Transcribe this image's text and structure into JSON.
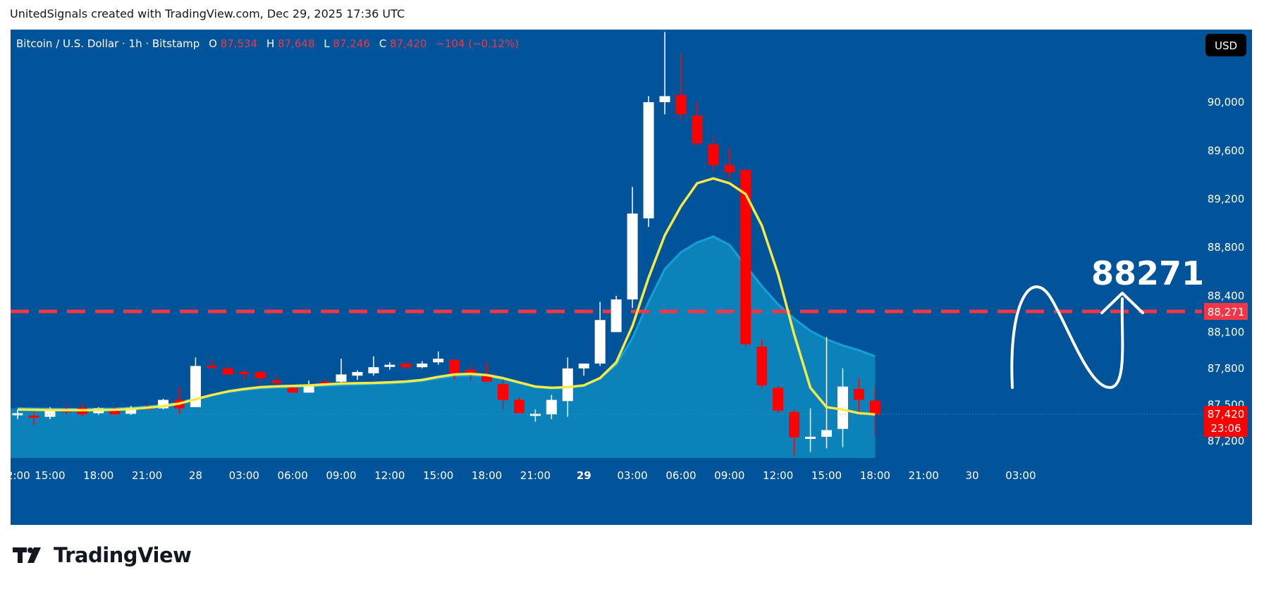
{
  "attribution": "UnitedSignals created with TradingView.com, Dec 29, 2025 17:36 UTC",
  "brand": {
    "name": "TradingView",
    "icon": "tradingview-logo-icon"
  },
  "colors": {
    "background": "#02549a",
    "up": "#ffffff",
    "down": "#ff0000",
    "ma_fast": "#f5ea46",
    "ma_slow_fill": "#0d8cc0",
    "level_line": "#f23645"
  },
  "header": {
    "symbol": "Bitcoin / U.S. Dollar · 1h · Bitstamp",
    "o_label": "O",
    "o_value": "87,534",
    "h_label": "H",
    "h_value": "87,648",
    "l_label": "L",
    "l_value": "87,246",
    "c_label": "C",
    "c_value": "87,420",
    "change": "−104 (−0.12%)"
  },
  "currency_button": "USD",
  "annotation": {
    "text": "88271",
    "level": 88271
  },
  "price_tag": {
    "value": "88,271"
  },
  "last_price_tag": {
    "value": "87,420",
    "countdown": "23:06",
    "price": 87420
  },
  "chart_data": {
    "type": "candlestick",
    "symbol": "BTCUSD",
    "interval": "1h",
    "y_ticks": [
      {
        "label": "90,000",
        "value": 90000
      },
      {
        "label": "89,600",
        "value": 89600
      },
      {
        "label": "89,200",
        "value": 89200
      },
      {
        "label": "88,800",
        "value": 88800
      },
      {
        "label": "88,400",
        "value": 88400
      },
      {
        "label": "88,100",
        "value": 88100
      },
      {
        "label": "87,800",
        "value": 87800
      },
      {
        "label": "87,500",
        "value": 87500
      },
      {
        "label": "87,200",
        "value": 87200
      }
    ],
    "x_ticks": [
      {
        "label": "12:00",
        "index": -1,
        "partial": true
      },
      {
        "label": "15:00",
        "index": 2
      },
      {
        "label": "18:00",
        "index": 5
      },
      {
        "label": "21:00",
        "index": 8
      },
      {
        "label": "28",
        "index": 11
      },
      {
        "label": "03:00",
        "index": 14
      },
      {
        "label": "06:00",
        "index": 17
      },
      {
        "label": "09:00",
        "index": 20
      },
      {
        "label": "12:00",
        "index": 23
      },
      {
        "label": "15:00",
        "index": 26
      },
      {
        "label": "18:00",
        "index": 29
      },
      {
        "label": "21:00",
        "index": 32
      },
      {
        "label": "29",
        "index": 35,
        "bold": true
      },
      {
        "label": "03:00",
        "index": 38
      },
      {
        "label": "06:00",
        "index": 41
      },
      {
        "label": "09:00",
        "index": 44
      },
      {
        "label": "12:00",
        "index": 47
      },
      {
        "label": "15:00",
        "index": 50
      },
      {
        "label": "18:00",
        "index": 53
      },
      {
        "label": "21:00",
        "index": 56
      },
      {
        "label": "30",
        "index": 59
      },
      {
        "label": "03:00",
        "index": 62
      }
    ],
    "candles": [
      {
        "o": 87420,
        "h": 87460,
        "l": 87380,
        "c": 87430
      },
      {
        "o": 87410,
        "h": 87440,
        "l": 87330,
        "c": 87395
      },
      {
        "o": 87400,
        "h": 87480,
        "l": 87380,
        "c": 87460
      },
      {
        "o": 87460,
        "h": 87500,
        "l": 87420,
        "c": 87440
      },
      {
        "o": 87475,
        "h": 87510,
        "l": 87410,
        "c": 87420
      },
      {
        "o": 87430,
        "h": 87480,
        "l": 87415,
        "c": 87470
      },
      {
        "o": 87465,
        "h": 87480,
        "l": 87415,
        "c": 87420
      },
      {
        "o": 87425,
        "h": 87490,
        "l": 87415,
        "c": 87475
      },
      {
        "o": 87480,
        "h": 87500,
        "l": 87460,
        "c": 87470
      },
      {
        "o": 87470,
        "h": 87550,
        "l": 87460,
        "c": 87540
      },
      {
        "o": 87540,
        "h": 87640,
        "l": 87420,
        "c": 87470
      },
      {
        "o": 87480,
        "h": 87890,
        "l": 87480,
        "c": 87820
      },
      {
        "o": 87820,
        "h": 87870,
        "l": 87810,
        "c": 87805
      },
      {
        "o": 87800,
        "h": 87840,
        "l": 87740,
        "c": 87750
      },
      {
        "o": 87770,
        "h": 87790,
        "l": 87710,
        "c": 87765
      },
      {
        "o": 87770,
        "h": 87780,
        "l": 87660,
        "c": 87720
      },
      {
        "o": 87700,
        "h": 87730,
        "l": 87660,
        "c": 87680
      },
      {
        "o": 87640,
        "h": 87670,
        "l": 87610,
        "c": 87600
      },
      {
        "o": 87600,
        "h": 87700,
        "l": 87600,
        "c": 87660
      },
      {
        "o": 87690,
        "h": 87710,
        "l": 87665,
        "c": 87680
      },
      {
        "o": 87690,
        "h": 87880,
        "l": 87680,
        "c": 87750
      },
      {
        "o": 87740,
        "h": 87785,
        "l": 87705,
        "c": 87770
      },
      {
        "o": 87760,
        "h": 87900,
        "l": 87740,
        "c": 87810
      },
      {
        "o": 87820,
        "h": 87850,
        "l": 87790,
        "c": 87830
      },
      {
        "o": 87840,
        "h": 87860,
        "l": 87790,
        "c": 87810
      },
      {
        "o": 87810,
        "h": 87860,
        "l": 87800,
        "c": 87840
      },
      {
        "o": 87850,
        "h": 87940,
        "l": 87830,
        "c": 87880
      },
      {
        "o": 87870,
        "h": 87880,
        "l": 87710,
        "c": 87750
      },
      {
        "o": 87790,
        "h": 87830,
        "l": 87700,
        "c": 87750
      },
      {
        "o": 87750,
        "h": 87850,
        "l": 87700,
        "c": 87690
      },
      {
        "o": 87670,
        "h": 87730,
        "l": 87460,
        "c": 87540
      },
      {
        "o": 87540,
        "h": 87560,
        "l": 87440,
        "c": 87430
      },
      {
        "o": 87415,
        "h": 87460,
        "l": 87360,
        "c": 87425
      },
      {
        "o": 87420,
        "h": 87580,
        "l": 87380,
        "c": 87540
      },
      {
        "o": 87530,
        "h": 87890,
        "l": 87400,
        "c": 87800
      },
      {
        "o": 87800,
        "h": 87840,
        "l": 87740,
        "c": 87840
      },
      {
        "o": 87840,
        "h": 88350,
        "l": 87820,
        "c": 88200
      },
      {
        "o": 88100,
        "h": 88400,
        "l": 88100,
        "c": 88370
      },
      {
        "o": 88370,
        "h": 89300,
        "l": 88300,
        "c": 89080
      },
      {
        "o": 89040,
        "h": 90050,
        "l": 88970,
        "c": 90000
      },
      {
        "o": 90000,
        "h": 90580,
        "l": 89900,
        "c": 90050
      },
      {
        "o": 90060,
        "h": 90400,
        "l": 89850,
        "c": 89900
      },
      {
        "o": 89890,
        "h": 90000,
        "l": 89640,
        "c": 89660
      },
      {
        "o": 89650,
        "h": 89720,
        "l": 89420,
        "c": 89480
      },
      {
        "o": 89480,
        "h": 89620,
        "l": 89370,
        "c": 89420
      },
      {
        "o": 89440,
        "h": 89460,
        "l": 87980,
        "c": 88000
      },
      {
        "o": 87980,
        "h": 88040,
        "l": 87640,
        "c": 87660
      },
      {
        "o": 87640,
        "h": 87660,
        "l": 87430,
        "c": 87450
      },
      {
        "o": 87440,
        "h": 87460,
        "l": 87080,
        "c": 87230
      },
      {
        "o": 87230,
        "h": 87470,
        "l": 87110,
        "c": 87235
      },
      {
        "o": 87235,
        "h": 88060,
        "l": 87140,
        "c": 87290
      },
      {
        "o": 87300,
        "h": 87800,
        "l": 87150,
        "c": 87650
      },
      {
        "o": 87630,
        "h": 87720,
        "l": 87440,
        "c": 87540
      },
      {
        "o": 87534,
        "h": 87648,
        "l": 87246,
        "c": 87420
      }
    ],
    "ma_fast": [
      87460,
      87458,
      87456,
      87455,
      87455,
      87456,
      87458,
      87465,
      87475,
      87488,
      87510,
      87545,
      87580,
      87610,
      87630,
      87645,
      87652,
      87655,
      87660,
      87668,
      87675,
      87678,
      87680,
      87685,
      87692,
      87705,
      87730,
      87750,
      87755,
      87745,
      87720,
      87685,
      87650,
      87640,
      87645,
      87660,
      87720,
      87850,
      88150,
      88550,
      88900,
      89140,
      89330,
      89370,
      89330,
      89240,
      88980,
      88580,
      88080,
      87640,
      87480,
      87460,
      87430,
      87420
    ],
    "ma_slow": [
      87470,
      87468,
      87466,
      87465,
      87465,
      87466,
      87468,
      87475,
      87485,
      87497,
      87518,
      87550,
      87580,
      87605,
      87622,
      87635,
      87642,
      87646,
      87650,
      87656,
      87662,
      87667,
      87671,
      87676,
      87684,
      87697,
      87718,
      87735,
      87741,
      87735,
      87712,
      87680,
      87648,
      87636,
      87640,
      87662,
      87720,
      87830,
      88050,
      88350,
      88620,
      88760,
      88840,
      88890,
      88820,
      88650,
      88480,
      88330,
      88210,
      88110,
      88040,
      87990,
      87950,
      87900
    ],
    "ylim": [
      87060,
      90600
    ],
    "grid": false,
    "legend": "none"
  }
}
